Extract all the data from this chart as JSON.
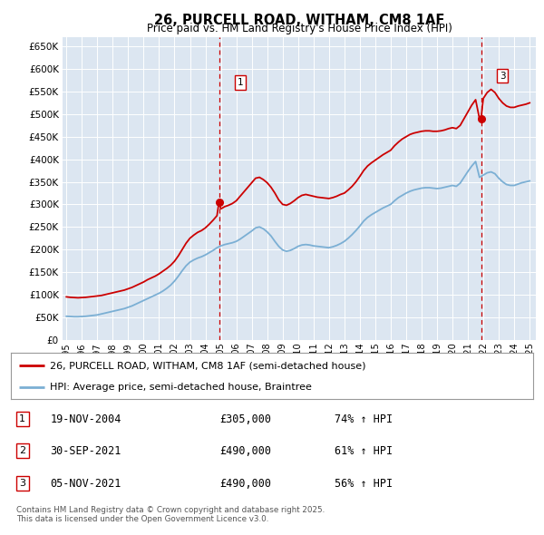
{
  "title": "26, PURCELL ROAD, WITHAM, CM8 1AF",
  "subtitle": "Price paid vs. HM Land Registry's House Price Index (HPI)",
  "background_color": "#ffffff",
  "plot_bg_color": "#dce6f1",
  "red_line_color": "#cc0000",
  "blue_line_color": "#7bafd4",
  "ylim": [
    0,
    670000
  ],
  "yticks": [
    0,
    50000,
    100000,
    150000,
    200000,
    250000,
    300000,
    350000,
    400000,
    450000,
    500000,
    550000,
    600000,
    650000
  ],
  "legend_entries": [
    "26, PURCELL ROAD, WITHAM, CM8 1AF (semi-detached house)",
    "HPI: Average price, semi-detached house, Braintree"
  ],
  "transactions": [
    {
      "num": 1,
      "date": "19-NOV-2004",
      "price": "£305,000",
      "hpi_change": "74% ↑ HPI",
      "x_year": 2004.88
    },
    {
      "num": 2,
      "date": "30-SEP-2021",
      "price": "£490,000",
      "hpi_change": "61% ↑ HPI",
      "x_year": 2021.75
    },
    {
      "num": 3,
      "date": "05-NOV-2021",
      "price": "£490,000",
      "hpi_change": "56% ↑ HPI",
      "x_year": 2021.85
    }
  ],
  "footnote": "Contains HM Land Registry data © Crown copyright and database right 2025.\nThis data is licensed under the Open Government Licence v3.0.",
  "red_hpi_data": [
    [
      1995.0,
      95000
    ],
    [
      1995.25,
      94000
    ],
    [
      1995.5,
      93500
    ],
    [
      1995.75,
      93000
    ],
    [
      1996.0,
      93500
    ],
    [
      1996.25,
      94000
    ],
    [
      1996.5,
      95000
    ],
    [
      1996.75,
      96000
    ],
    [
      1997.0,
      97000
    ],
    [
      1997.25,
      98000
    ],
    [
      1997.5,
      100000
    ],
    [
      1997.75,
      102000
    ],
    [
      1998.0,
      104000
    ],
    [
      1998.25,
      106000
    ],
    [
      1998.5,
      108000
    ],
    [
      1998.75,
      110000
    ],
    [
      1999.0,
      113000
    ],
    [
      1999.25,
      116000
    ],
    [
      1999.5,
      120000
    ],
    [
      1999.75,
      124000
    ],
    [
      2000.0,
      128000
    ],
    [
      2000.25,
      133000
    ],
    [
      2000.5,
      137000
    ],
    [
      2000.75,
      141000
    ],
    [
      2001.0,
      146000
    ],
    [
      2001.25,
      152000
    ],
    [
      2001.5,
      158000
    ],
    [
      2001.75,
      165000
    ],
    [
      2002.0,
      174000
    ],
    [
      2002.25,
      186000
    ],
    [
      2002.5,
      200000
    ],
    [
      2002.75,
      214000
    ],
    [
      2003.0,
      225000
    ],
    [
      2003.25,
      232000
    ],
    [
      2003.5,
      238000
    ],
    [
      2003.75,
      242000
    ],
    [
      2004.0,
      248000
    ],
    [
      2004.25,
      256000
    ],
    [
      2004.5,
      265000
    ],
    [
      2004.75,
      275000
    ],
    [
      2004.88,
      305000
    ],
    [
      2005.0,
      290000
    ],
    [
      2005.25,
      295000
    ],
    [
      2005.5,
      298000
    ],
    [
      2005.75,
      302000
    ],
    [
      2006.0,
      308000
    ],
    [
      2006.25,
      318000
    ],
    [
      2006.5,
      328000
    ],
    [
      2006.75,
      338000
    ],
    [
      2007.0,
      348000
    ],
    [
      2007.25,
      358000
    ],
    [
      2007.5,
      360000
    ],
    [
      2007.75,
      355000
    ],
    [
      2008.0,
      348000
    ],
    [
      2008.25,
      338000
    ],
    [
      2008.5,
      325000
    ],
    [
      2008.75,
      310000
    ],
    [
      2009.0,
      300000
    ],
    [
      2009.25,
      298000
    ],
    [
      2009.5,
      302000
    ],
    [
      2009.75,
      308000
    ],
    [
      2010.0,
      315000
    ],
    [
      2010.25,
      320000
    ],
    [
      2010.5,
      322000
    ],
    [
      2010.75,
      320000
    ],
    [
      2011.0,
      318000
    ],
    [
      2011.25,
      316000
    ],
    [
      2011.5,
      315000
    ],
    [
      2011.75,
      314000
    ],
    [
      2012.0,
      313000
    ],
    [
      2012.25,
      315000
    ],
    [
      2012.5,
      318000
    ],
    [
      2012.75,
      322000
    ],
    [
      2013.0,
      325000
    ],
    [
      2013.25,
      332000
    ],
    [
      2013.5,
      340000
    ],
    [
      2013.75,
      350000
    ],
    [
      2014.0,
      362000
    ],
    [
      2014.25,
      375000
    ],
    [
      2014.5,
      385000
    ],
    [
      2014.75,
      392000
    ],
    [
      2015.0,
      398000
    ],
    [
      2015.25,
      404000
    ],
    [
      2015.5,
      410000
    ],
    [
      2015.75,
      415000
    ],
    [
      2016.0,
      420000
    ],
    [
      2016.25,
      430000
    ],
    [
      2016.5,
      438000
    ],
    [
      2016.75,
      445000
    ],
    [
      2017.0,
      450000
    ],
    [
      2017.25,
      455000
    ],
    [
      2017.5,
      458000
    ],
    [
      2017.75,
      460000
    ],
    [
      2018.0,
      462000
    ],
    [
      2018.25,
      463000
    ],
    [
      2018.5,
      463000
    ],
    [
      2018.75,
      462000
    ],
    [
      2019.0,
      462000
    ],
    [
      2019.25,
      463000
    ],
    [
      2019.5,
      465000
    ],
    [
      2019.75,
      468000
    ],
    [
      2020.0,
      470000
    ],
    [
      2020.25,
      468000
    ],
    [
      2020.5,
      475000
    ],
    [
      2020.75,
      490000
    ],
    [
      2021.0,
      505000
    ],
    [
      2021.25,
      520000
    ],
    [
      2021.5,
      532000
    ],
    [
      2021.75,
      490000
    ],
    [
      2021.85,
      490000
    ],
    [
      2022.0,
      535000
    ],
    [
      2022.25,
      548000
    ],
    [
      2022.5,
      555000
    ],
    [
      2022.75,
      548000
    ],
    [
      2023.0,
      535000
    ],
    [
      2023.25,
      525000
    ],
    [
      2023.5,
      518000
    ],
    [
      2023.75,
      515000
    ],
    [
      2024.0,
      515000
    ],
    [
      2024.25,
      518000
    ],
    [
      2024.5,
      520000
    ],
    [
      2024.75,
      522000
    ],
    [
      2025.0,
      525000
    ]
  ],
  "blue_hpi_data": [
    [
      1995.0,
      52000
    ],
    [
      1995.25,
      51500
    ],
    [
      1995.5,
      51000
    ],
    [
      1995.75,
      51000
    ],
    [
      1996.0,
      51500
    ],
    [
      1996.25,
      52000
    ],
    [
      1996.5,
      53000
    ],
    [
      1996.75,
      54000
    ],
    [
      1997.0,
      55000
    ],
    [
      1997.25,
      57000
    ],
    [
      1997.5,
      59000
    ],
    [
      1997.75,
      61000
    ],
    [
      1998.0,
      63000
    ],
    [
      1998.25,
      65000
    ],
    [
      1998.5,
      67000
    ],
    [
      1998.75,
      69000
    ],
    [
      1999.0,
      72000
    ],
    [
      1999.25,
      75000
    ],
    [
      1999.5,
      79000
    ],
    [
      1999.75,
      83000
    ],
    [
      2000.0,
      87000
    ],
    [
      2000.25,
      91000
    ],
    [
      2000.5,
      95000
    ],
    [
      2000.75,
      99000
    ],
    [
      2001.0,
      103000
    ],
    [
      2001.25,
      108000
    ],
    [
      2001.5,
      114000
    ],
    [
      2001.75,
      121000
    ],
    [
      2002.0,
      130000
    ],
    [
      2002.25,
      141000
    ],
    [
      2002.5,
      153000
    ],
    [
      2002.75,
      164000
    ],
    [
      2003.0,
      172000
    ],
    [
      2003.25,
      177000
    ],
    [
      2003.5,
      181000
    ],
    [
      2003.75,
      184000
    ],
    [
      2004.0,
      188000
    ],
    [
      2004.25,
      193000
    ],
    [
      2004.5,
      198000
    ],
    [
      2004.75,
      204000
    ],
    [
      2005.0,
      208000
    ],
    [
      2005.25,
      211000
    ],
    [
      2005.5,
      213000
    ],
    [
      2005.75,
      215000
    ],
    [
      2006.0,
      218000
    ],
    [
      2006.25,
      223000
    ],
    [
      2006.5,
      229000
    ],
    [
      2006.75,
      235000
    ],
    [
      2007.0,
      241000
    ],
    [
      2007.25,
      248000
    ],
    [
      2007.5,
      250000
    ],
    [
      2007.75,
      246000
    ],
    [
      2008.0,
      239000
    ],
    [
      2008.25,
      230000
    ],
    [
      2008.5,
      218000
    ],
    [
      2008.75,
      207000
    ],
    [
      2009.0,
      199000
    ],
    [
      2009.25,
      196000
    ],
    [
      2009.5,
      198000
    ],
    [
      2009.75,
      202000
    ],
    [
      2010.0,
      207000
    ],
    [
      2010.25,
      210000
    ],
    [
      2010.5,
      211000
    ],
    [
      2010.75,
      210000
    ],
    [
      2011.0,
      208000
    ],
    [
      2011.25,
      207000
    ],
    [
      2011.5,
      206000
    ],
    [
      2011.75,
      205000
    ],
    [
      2012.0,
      204000
    ],
    [
      2012.25,
      206000
    ],
    [
      2012.5,
      209000
    ],
    [
      2012.75,
      213000
    ],
    [
      2013.0,
      218000
    ],
    [
      2013.25,
      225000
    ],
    [
      2013.5,
      233000
    ],
    [
      2013.75,
      242000
    ],
    [
      2014.0,
      252000
    ],
    [
      2014.25,
      263000
    ],
    [
      2014.5,
      271000
    ],
    [
      2014.75,
      277000
    ],
    [
      2015.0,
      282000
    ],
    [
      2015.25,
      287000
    ],
    [
      2015.5,
      292000
    ],
    [
      2015.75,
      296000
    ],
    [
      2016.0,
      300000
    ],
    [
      2016.25,
      308000
    ],
    [
      2016.5,
      315000
    ],
    [
      2016.75,
      320000
    ],
    [
      2017.0,
      325000
    ],
    [
      2017.25,
      329000
    ],
    [
      2017.5,
      332000
    ],
    [
      2017.75,
      334000
    ],
    [
      2018.0,
      336000
    ],
    [
      2018.25,
      337000
    ],
    [
      2018.5,
      337000
    ],
    [
      2018.75,
      336000
    ],
    [
      2019.0,
      335000
    ],
    [
      2019.25,
      336000
    ],
    [
      2019.5,
      338000
    ],
    [
      2019.75,
      340000
    ],
    [
      2020.0,
      342000
    ],
    [
      2020.25,
      340000
    ],
    [
      2020.5,
      347000
    ],
    [
      2020.75,
      360000
    ],
    [
      2021.0,
      373000
    ],
    [
      2021.25,
      385000
    ],
    [
      2021.5,
      395000
    ],
    [
      2021.75,
      360000
    ],
    [
      2022.0,
      365000
    ],
    [
      2022.25,
      370000
    ],
    [
      2022.5,
      372000
    ],
    [
      2022.75,
      368000
    ],
    [
      2023.0,
      358000
    ],
    [
      2023.25,
      350000
    ],
    [
      2023.5,
      344000
    ],
    [
      2023.75,
      342000
    ],
    [
      2024.0,
      342000
    ],
    [
      2024.25,
      345000
    ],
    [
      2024.5,
      348000
    ],
    [
      2024.75,
      350000
    ],
    [
      2025.0,
      352000
    ]
  ],
  "xticks": [
    1995,
    1996,
    1997,
    1998,
    1999,
    2000,
    2001,
    2002,
    2003,
    2004,
    2005,
    2006,
    2007,
    2008,
    2009,
    2010,
    2011,
    2012,
    2013,
    2014,
    2015,
    2016,
    2017,
    2018,
    2019,
    2020,
    2021,
    2022,
    2023,
    2024,
    2025
  ],
  "marker1_x": 2004.88,
  "marker1_y": 305000,
  "marker3_x": 2021.85,
  "marker3_y": 490000,
  "vline1_x": 2004.88,
  "vline2_x": 2021.85
}
